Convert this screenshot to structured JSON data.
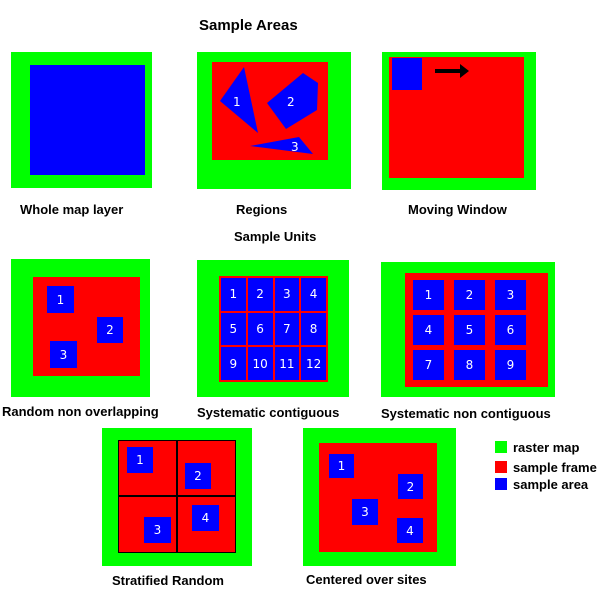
{
  "titles": {
    "sample_areas": "Sample Areas",
    "sample_units": "Sample Units"
  },
  "panels": {
    "whole_map_layer": "Whole map layer",
    "regions": {
      "label": "Regions",
      "region_labels": [
        "1",
        "2",
        "3"
      ]
    },
    "moving_window": "Moving Window",
    "random_non_overlapping": {
      "label": "Random non overlapping",
      "units": [
        "1",
        "2",
        "3"
      ]
    },
    "systematic_contiguous": {
      "label": "Systematic contiguous",
      "units": [
        "1",
        "2",
        "3",
        "4",
        "5",
        "6",
        "7",
        "8",
        "9",
        "10",
        "11",
        "12"
      ]
    },
    "systematic_non_contiguous": {
      "label": "Systematic non contiguous",
      "units": [
        "1",
        "2",
        "3",
        "4",
        "5",
        "6",
        "7",
        "8",
        "9"
      ]
    },
    "stratified_random": {
      "label": "Stratified Random",
      "units": [
        "1",
        "2",
        "3",
        "4"
      ]
    },
    "centered_over_sites": {
      "label": "Centered over sites",
      "units": [
        "1",
        "2",
        "3",
        "4"
      ]
    }
  },
  "legend": [
    {
      "label": "raster map",
      "color": "#00ff00"
    },
    {
      "label": "sample frame",
      "color": "#ff0000"
    },
    {
      "label": "sample area",
      "color": "#0000ff"
    }
  ]
}
